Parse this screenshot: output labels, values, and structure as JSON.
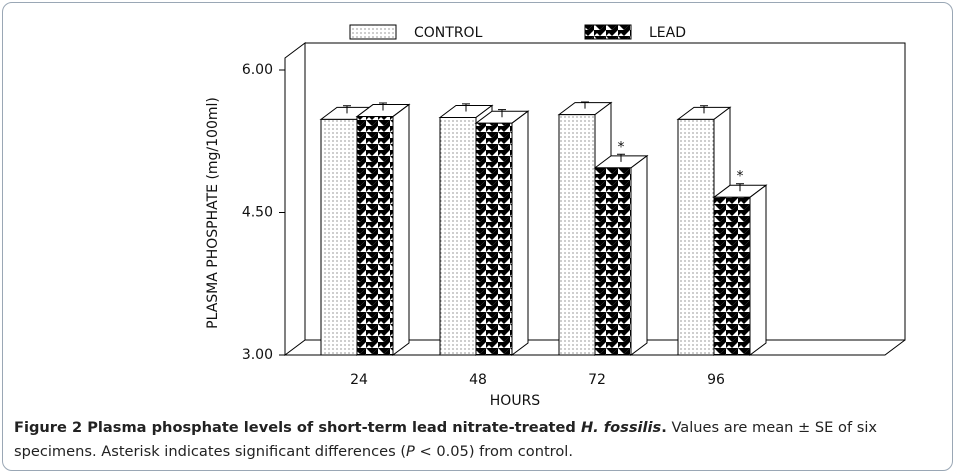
{
  "chart_data": {
    "type": "bar3d",
    "xlabel": "HOURS",
    "ylabel": "PLASMA PHOSPHATE (mg/100ml)",
    "categories": [
      "24",
      "48",
      "72",
      "96"
    ],
    "series": [
      {
        "name": "CONTROL",
        "color": "#ffffff",
        "pattern": "dots",
        "values": [
          5.48,
          5.5,
          5.53,
          5.48
        ],
        "errors": [
          0.08,
          0.08,
          0.07,
          0.08
        ]
      },
      {
        "name": "LEAD",
        "color": "#000000",
        "pattern": "triangles",
        "values": [
          5.51,
          5.44,
          4.97,
          4.66
        ],
        "errors": [
          0.08,
          0.08,
          0.08,
          0.08
        ],
        "significance": [
          null,
          null,
          "*",
          "*"
        ]
      }
    ],
    "ylim": [
      3,
      6
    ],
    "yticks": [
      {
        "value": 3,
        "label": "3.00"
      },
      {
        "value": 4.5,
        "label": "4.50"
      },
      {
        "value": 6,
        "label": "6.00"
      }
    ]
  },
  "caption": {
    "label": "Figure 2",
    "title": "Plasma phosphate levels of short-term lead nitrate-treated ",
    "species": "H. fossilis",
    "title_end": ".",
    "text1": "Values are mean ± SE of six specimens. Asterisk indicates significant differences (",
    "p": "P",
    "text2": " < 0.05) from control."
  }
}
